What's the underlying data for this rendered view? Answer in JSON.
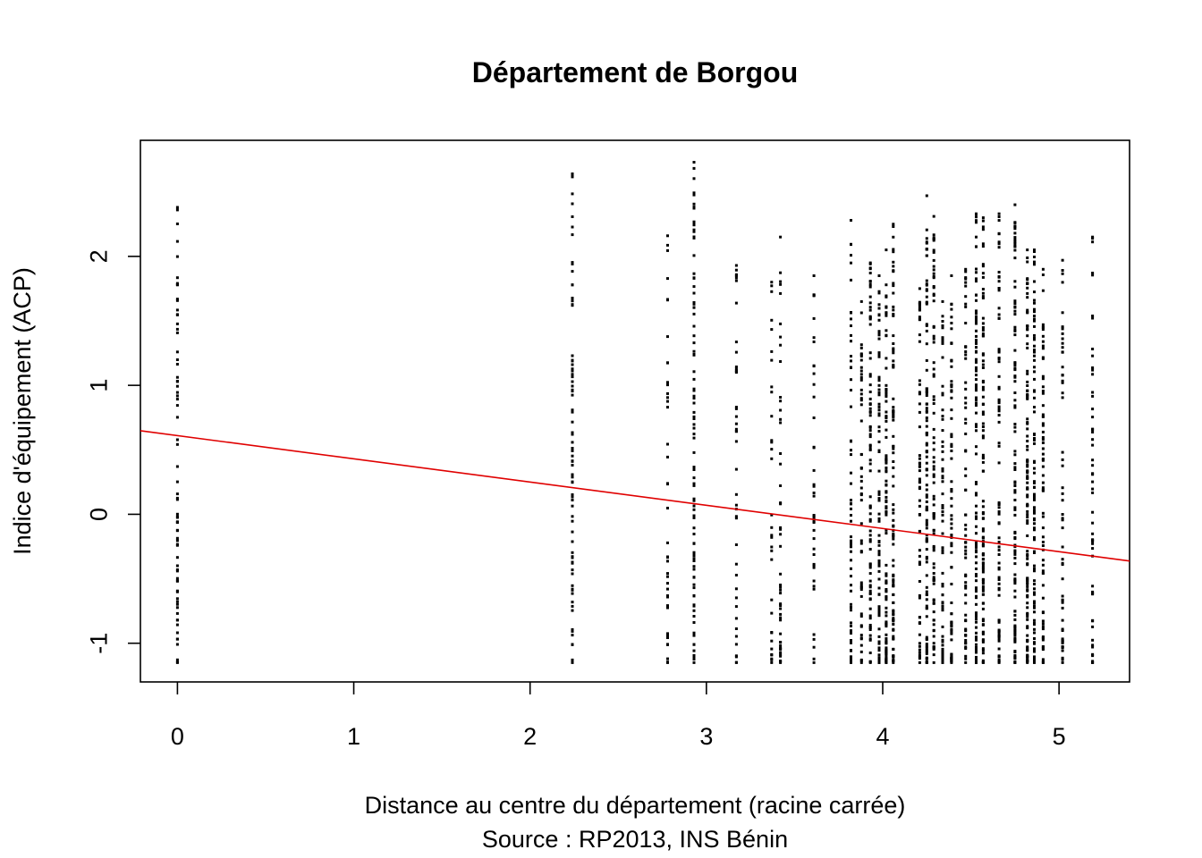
{
  "chart_data": {
    "type": "scatter",
    "title": "Département de Borgou",
    "xlabel": "Distance au centre du département (racine carrée)",
    "source": "Source : RP2013, INS Bénin",
    "ylabel": "Indice d'équipement (ACP)",
    "xlim": [
      -0.21,
      5.4
    ],
    "ylim": [
      -1.3,
      2.9
    ],
    "x_ticks": [
      0,
      1,
      2,
      3,
      4,
      5
    ],
    "x_tick_labels": [
      "0",
      "1",
      "2",
      "3",
      "4",
      "5"
    ],
    "y_ticks": [
      -1,
      0,
      1,
      2
    ],
    "y_tick_labels": [
      "-1",
      "0",
      "1",
      "2"
    ],
    "grid": false,
    "point_color": "#000000",
    "point_marker": "dot",
    "regression_line": {
      "color": "#e00000",
      "intercept": 0.61,
      "slope": -0.18
    },
    "point_columns": [
      {
        "x": 0.0,
        "ymin": -1.15,
        "ymax": 2.38,
        "count": 70
      },
      {
        "x": 2.24,
        "ymin": -1.15,
        "ymax": 2.64,
        "count": 85
      },
      {
        "x": 2.78,
        "ymin": -1.15,
        "ymax": 2.16,
        "count": 40
      },
      {
        "x": 2.93,
        "ymin": -1.15,
        "ymax": 2.73,
        "count": 95
      },
      {
        "x": 3.17,
        "ymin": -1.15,
        "ymax": 1.93,
        "count": 40
      },
      {
        "x": 3.37,
        "ymin": -1.15,
        "ymax": 1.8,
        "count": 30
      },
      {
        "x": 3.42,
        "ymin": -1.15,
        "ymax": 2.15,
        "count": 45
      },
      {
        "x": 3.61,
        "ymin": -1.15,
        "ymax": 1.85,
        "count": 40
      },
      {
        "x": 3.82,
        "ymin": -1.15,
        "ymax": 2.28,
        "count": 60
      },
      {
        "x": 3.88,
        "ymin": -1.15,
        "ymax": 1.65,
        "count": 50
      },
      {
        "x": 3.93,
        "ymin": -1.15,
        "ymax": 1.95,
        "count": 80
      },
      {
        "x": 3.98,
        "ymin": -1.15,
        "ymax": 1.85,
        "count": 80
      },
      {
        "x": 4.02,
        "ymin": -1.15,
        "ymax": 2.05,
        "count": 95
      },
      {
        "x": 4.06,
        "ymin": -1.15,
        "ymax": 2.25,
        "count": 90
      },
      {
        "x": 4.21,
        "ymin": -1.15,
        "ymax": 1.75,
        "count": 55
      },
      {
        "x": 4.25,
        "ymin": -1.15,
        "ymax": 2.47,
        "count": 100
      },
      {
        "x": 4.29,
        "ymin": -1.15,
        "ymax": 2.31,
        "count": 85
      },
      {
        "x": 4.34,
        "ymin": -1.15,
        "ymax": 1.65,
        "count": 65
      },
      {
        "x": 4.39,
        "ymin": -1.15,
        "ymax": 1.85,
        "count": 70
      },
      {
        "x": 4.47,
        "ymin": -1.15,
        "ymax": 1.9,
        "count": 60
      },
      {
        "x": 4.53,
        "ymin": -1.15,
        "ymax": 2.33,
        "count": 105
      },
      {
        "x": 4.57,
        "ymin": -1.15,
        "ymax": 2.3,
        "count": 100
      },
      {
        "x": 4.66,
        "ymin": -1.15,
        "ymax": 2.33,
        "count": 80
      },
      {
        "x": 4.75,
        "ymin": -1.15,
        "ymax": 2.4,
        "count": 100
      },
      {
        "x": 4.82,
        "ymin": -1.15,
        "ymax": 2.05,
        "count": 110
      },
      {
        "x": 4.86,
        "ymin": -1.15,
        "ymax": 2.05,
        "count": 100
      },
      {
        "x": 4.91,
        "ymin": -1.15,
        "ymax": 1.9,
        "count": 70
      },
      {
        "x": 5.02,
        "ymin": -1.15,
        "ymax": 1.97,
        "count": 55
      },
      {
        "x": 5.19,
        "ymin": -1.15,
        "ymax": 2.15,
        "count": 50
      }
    ]
  }
}
